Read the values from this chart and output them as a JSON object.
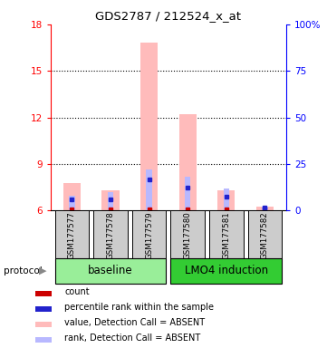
{
  "title": "GDS2787 / 212524_x_at",
  "samples": [
    "GSM177577",
    "GSM177578",
    "GSM177579",
    "GSM177580",
    "GSM177581",
    "GSM177582"
  ],
  "groups": [
    {
      "name": "baseline",
      "indices": [
        0,
        1,
        2
      ],
      "color": "#99ee99"
    },
    {
      "name": "LMO4 induction",
      "indices": [
        3,
        4,
        5
      ],
      "color": "#33cc33"
    }
  ],
  "ylim_left": [
    6,
    18
  ],
  "ylim_right": [
    0,
    100
  ],
  "yticks_left": [
    6,
    9,
    12,
    15,
    18
  ],
  "yticks_right": [
    0,
    25,
    50,
    75,
    100
  ],
  "ytick_labels_right": [
    "0",
    "25",
    "50",
    "75",
    "100%"
  ],
  "pink_bar_tops": [
    7.8,
    7.3,
    16.8,
    12.2,
    7.3,
    6.25
  ],
  "pink_bar_base": 6.0,
  "blue_bar_tops_pct": [
    8,
    10,
    22,
    18,
    12,
    2
  ],
  "red_dot_y": [
    6.05,
    6.05,
    6.05,
    6.05,
    6.05,
    6.05
  ],
  "blue_dot_y": [
    6.7,
    6.7,
    8.0,
    7.5,
    6.9,
    6.2
  ],
  "pink_bar_width": 0.45,
  "blue_bar_width": 0.15,
  "pink_color": "#ffbbbb",
  "lightblue_color": "#b8b8ff",
  "red_color": "#cc0000",
  "blue_color": "#2222cc",
  "legend_items": [
    {
      "label": "count",
      "color": "#cc0000"
    },
    {
      "label": "percentile rank within the sample",
      "color": "#2222cc"
    },
    {
      "label": "value, Detection Call = ABSENT",
      "color": "#ffbbbb"
    },
    {
      "label": "rank, Detection Call = ABSENT",
      "color": "#b8b8ff"
    }
  ],
  "protocol_label": "protocol",
  "background_color": "#ffffff",
  "sample_box_color": "#cccccc",
  "grid_yticks": [
    9,
    12,
    15
  ]
}
